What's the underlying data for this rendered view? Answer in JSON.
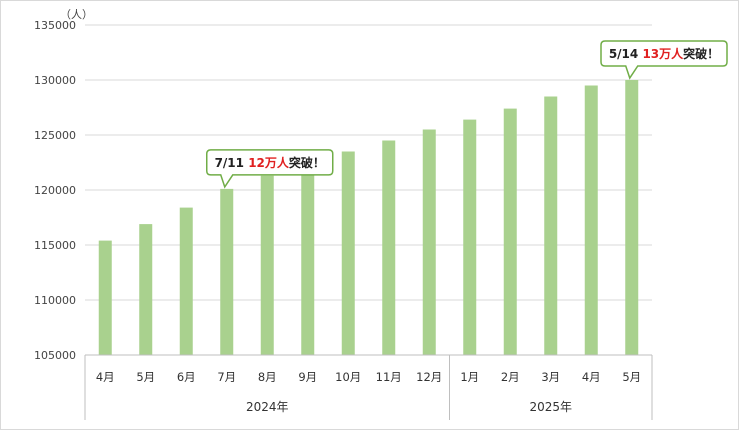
{
  "chart_data": {
    "type": "bar",
    "unit_label": "（人）",
    "yticks": [
      "135000",
      "130000",
      "125000",
      "120000",
      "115000",
      "110000",
      "105000"
    ],
    "ylim": [
      105000,
      135000
    ],
    "grid": true,
    "bar_color": "#a9d18e",
    "categories": [
      "4月",
      "5月",
      "6月",
      "7月",
      "8月",
      "9月",
      "10月",
      "11月",
      "12月",
      "1月",
      "2月",
      "3月",
      "4月",
      "5月"
    ],
    "values": [
      115400,
      116900,
      118400,
      120100,
      121300,
      122300,
      123500,
      124500,
      125500,
      126400,
      127400,
      128500,
      129500,
      130000
    ],
    "groups": [
      {
        "label": "2024年",
        "count": 9
      },
      {
        "label": "2025年",
        "count": 5
      }
    ],
    "annotations": [
      {
        "category_index": 3,
        "prefix": "7/11 ",
        "highlight": "12万人",
        "suffix": "突破！",
        "highlight_color": "#e02020",
        "border_color": "#70ad47"
      },
      {
        "category_index": 13,
        "prefix": "5/14 ",
        "highlight": "13万人",
        "suffix": "突破！",
        "highlight_color": "#e02020",
        "border_color": "#70ad47"
      }
    ]
  }
}
